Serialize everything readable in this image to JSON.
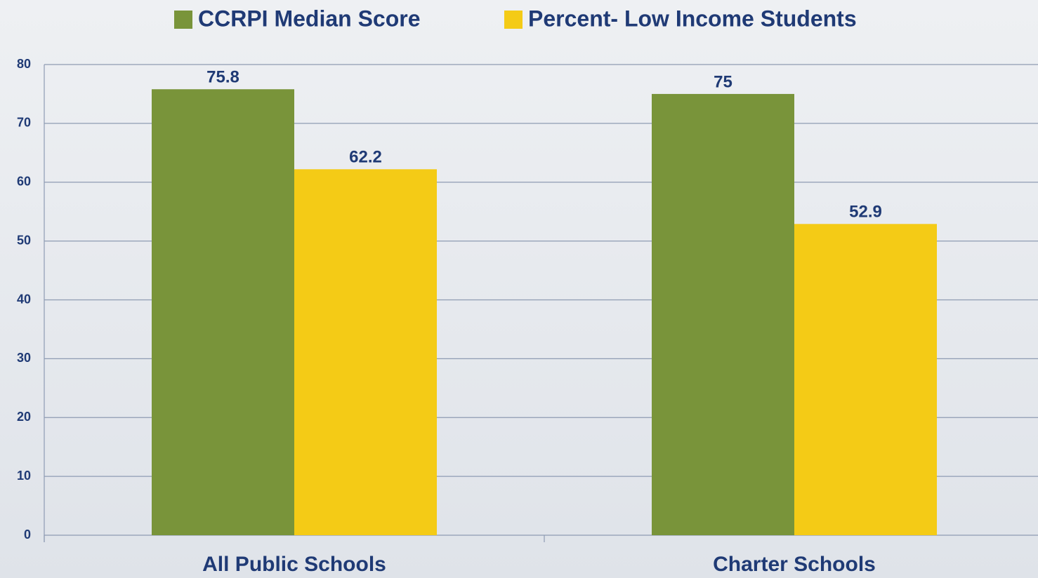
{
  "chart_data": {
    "type": "bar",
    "categories": [
      "All Public Schools",
      "Charter Schools"
    ],
    "series": [
      {
        "name": "CCRPI Median Score",
        "color": "#79943a",
        "values": [
          75.8,
          75
        ]
      },
      {
        "name": "Percent- Low Income Students",
        "color": "#f4cb16",
        "values": [
          62.2,
          52.9
        ]
      }
    ],
    "ylim": [
      0,
      80
    ],
    "yticks": [
      0,
      10,
      20,
      30,
      40,
      50,
      60,
      70,
      80
    ],
    "grid": true,
    "legend": "top"
  }
}
